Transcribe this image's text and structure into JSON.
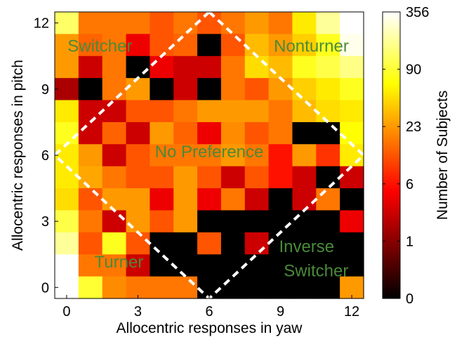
{
  "chart_data": {
    "type": "heatmap",
    "xlabel": "Allocentric responses in yaw",
    "ylabel": "Allocentric responses in pitch",
    "colorbar_label": "Number of Subjects",
    "x_ticks": [
      0,
      3,
      6,
      9,
      12
    ],
    "y_ticks": [
      0,
      3,
      6,
      9,
      12
    ],
    "xlim": [
      -0.5,
      12.5
    ],
    "ylim": [
      -0.5,
      12.5
    ],
    "colorbar_ticks": [
      "0",
      "1",
      "6",
      "23",
      "90",
      "356"
    ],
    "colorscale": "hot",
    "region_labels": [
      {
        "text": "Switcher",
        "x": 1.4,
        "y": 10.9
      },
      {
        "text": "Nonturner",
        "x": 10.3,
        "y": 10.9
      },
      {
        "text": "No Preference",
        "x": 6,
        "y": 6.1
      },
      {
        "text": "Inverse",
        "x": 10.1,
        "y": 1.8
      },
      {
        "text": "Switcher",
        "x": 10.5,
        "y": 0.7
      },
      {
        "text": "Turner",
        "x": 2.2,
        "y": 1.1
      }
    ],
    "boundary": [
      [
        6,
        12.5
      ],
      [
        12.5,
        6
      ],
      [
        6,
        -0.5
      ],
      [
        -0.5,
        6
      ]
    ],
    "z_level_rows_top_to_bottom": [
      [
        0.85,
        0.55,
        0.55,
        0.55,
        0.5,
        0.55,
        0.5,
        0.55,
        0.6,
        0.55,
        0.72,
        0.9,
        1.0
      ],
      [
        0.6,
        0.52,
        0.55,
        0.35,
        0.5,
        0.52,
        0.0,
        0.5,
        0.65,
        0.6,
        0.68,
        0.78,
        0.98
      ],
      [
        0.6,
        0.3,
        0.55,
        0.0,
        0.35,
        0.3,
        0.3,
        0.55,
        0.7,
        0.65,
        0.78,
        0.82,
        0.88
      ],
      [
        0.25,
        0.0,
        0.55,
        0.6,
        0.0,
        0.3,
        0.0,
        0.55,
        0.5,
        0.6,
        0.68,
        0.72,
        0.78
      ],
      [
        0.72,
        0.3,
        0.3,
        0.5,
        0.5,
        0.55,
        0.6,
        0.6,
        0.6,
        0.55,
        0.65,
        0.7,
        0.72
      ],
      [
        0.78,
        0.3,
        0.52,
        0.3,
        0.6,
        0.52,
        0.35,
        0.58,
        0.5,
        0.55,
        0.0,
        0.0,
        0.75
      ],
      [
        0.72,
        0.6,
        0.3,
        0.5,
        0.55,
        0.55,
        0.55,
        0.6,
        0.55,
        0.4,
        0.6,
        0.45,
        0.72
      ],
      [
        0.72,
        0.62,
        0.55,
        0.5,
        0.5,
        0.6,
        0.5,
        0.3,
        0.5,
        0.4,
        0.3,
        0.0,
        0.3
      ],
      [
        0.7,
        0.5,
        0.6,
        0.6,
        0.35,
        0.6,
        0.35,
        0.55,
        0.3,
        0.0,
        0.3,
        0.55,
        0.0
      ],
      [
        0.82,
        0.55,
        0.3,
        0.6,
        0.5,
        0.6,
        0.0,
        0.0,
        0.0,
        0.0,
        0.0,
        0.0,
        0.35
      ],
      [
        0.9,
        0.5,
        0.78,
        0.5,
        0.0,
        0.0,
        0.5,
        0.0,
        0.3,
        0.0,
        0.0,
        0.0,
        0.0
      ],
      [
        1.0,
        0.55,
        0.55,
        0.3,
        0.0,
        0.0,
        0.0,
        0.0,
        0.0,
        0.0,
        0.0,
        0.0,
        0.0
      ],
      [
        1.0,
        0.8,
        0.58,
        0.55,
        0.55,
        0.55,
        0.0,
        0.0,
        0.0,
        0.0,
        0.0,
        0.0,
        0.6
      ]
    ]
  }
}
